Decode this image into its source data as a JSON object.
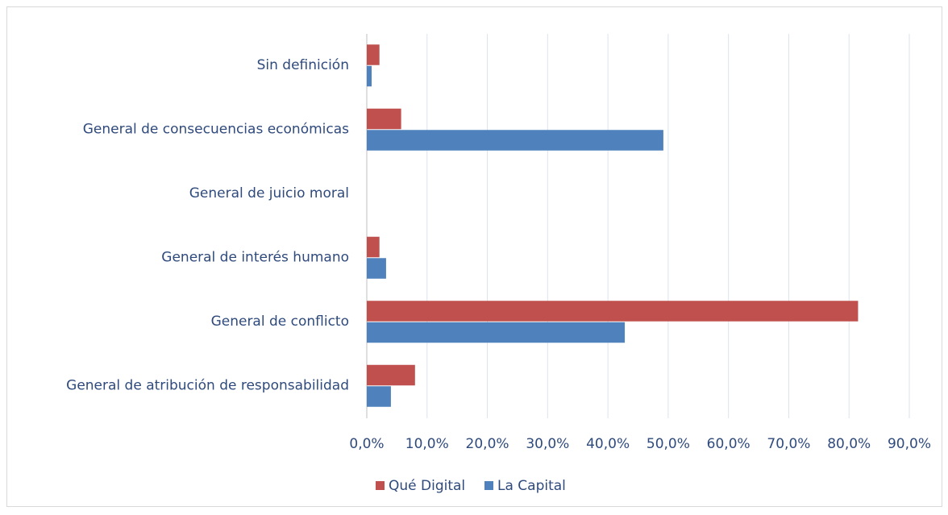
{
  "chart_data": {
    "type": "bar",
    "orientation": "horizontal",
    "categories": [
      "Sin definición",
      "General de consecuencias económicas",
      "General de juicio moral",
      "General de interés humano",
      "General de conflicto",
      "General de atribución de responsabilidad"
    ],
    "series": [
      {
        "name": "Qué Digital",
        "color": "#c0504d",
        "values": [
          2.1,
          5.7,
          0,
          2.1,
          81.5,
          8.0
        ]
      },
      {
        "name": "La Capital",
        "color": "#4f81bd",
        "values": [
          0.8,
          49.2,
          0,
          3.2,
          42.8,
          4.0
        ]
      }
    ],
    "xlim": [
      0,
      90
    ],
    "xticks": [
      {
        "value": 0,
        "label": "0,0%"
      },
      {
        "value": 10,
        "label": "10,0%"
      },
      {
        "value": 20,
        "label": "20,0%"
      },
      {
        "value": 30,
        "label": "30,0%"
      },
      {
        "value": 40,
        "label": "40,0%"
      },
      {
        "value": 50,
        "label": "50,0%"
      },
      {
        "value": 60,
        "label": "60,0%"
      },
      {
        "value": 70,
        "label": "70,0%"
      },
      {
        "value": 80,
        "label": "80,0%"
      },
      {
        "value": 90,
        "label": "90,0%"
      }
    ],
    "grid": true,
    "legend": "bottom"
  }
}
